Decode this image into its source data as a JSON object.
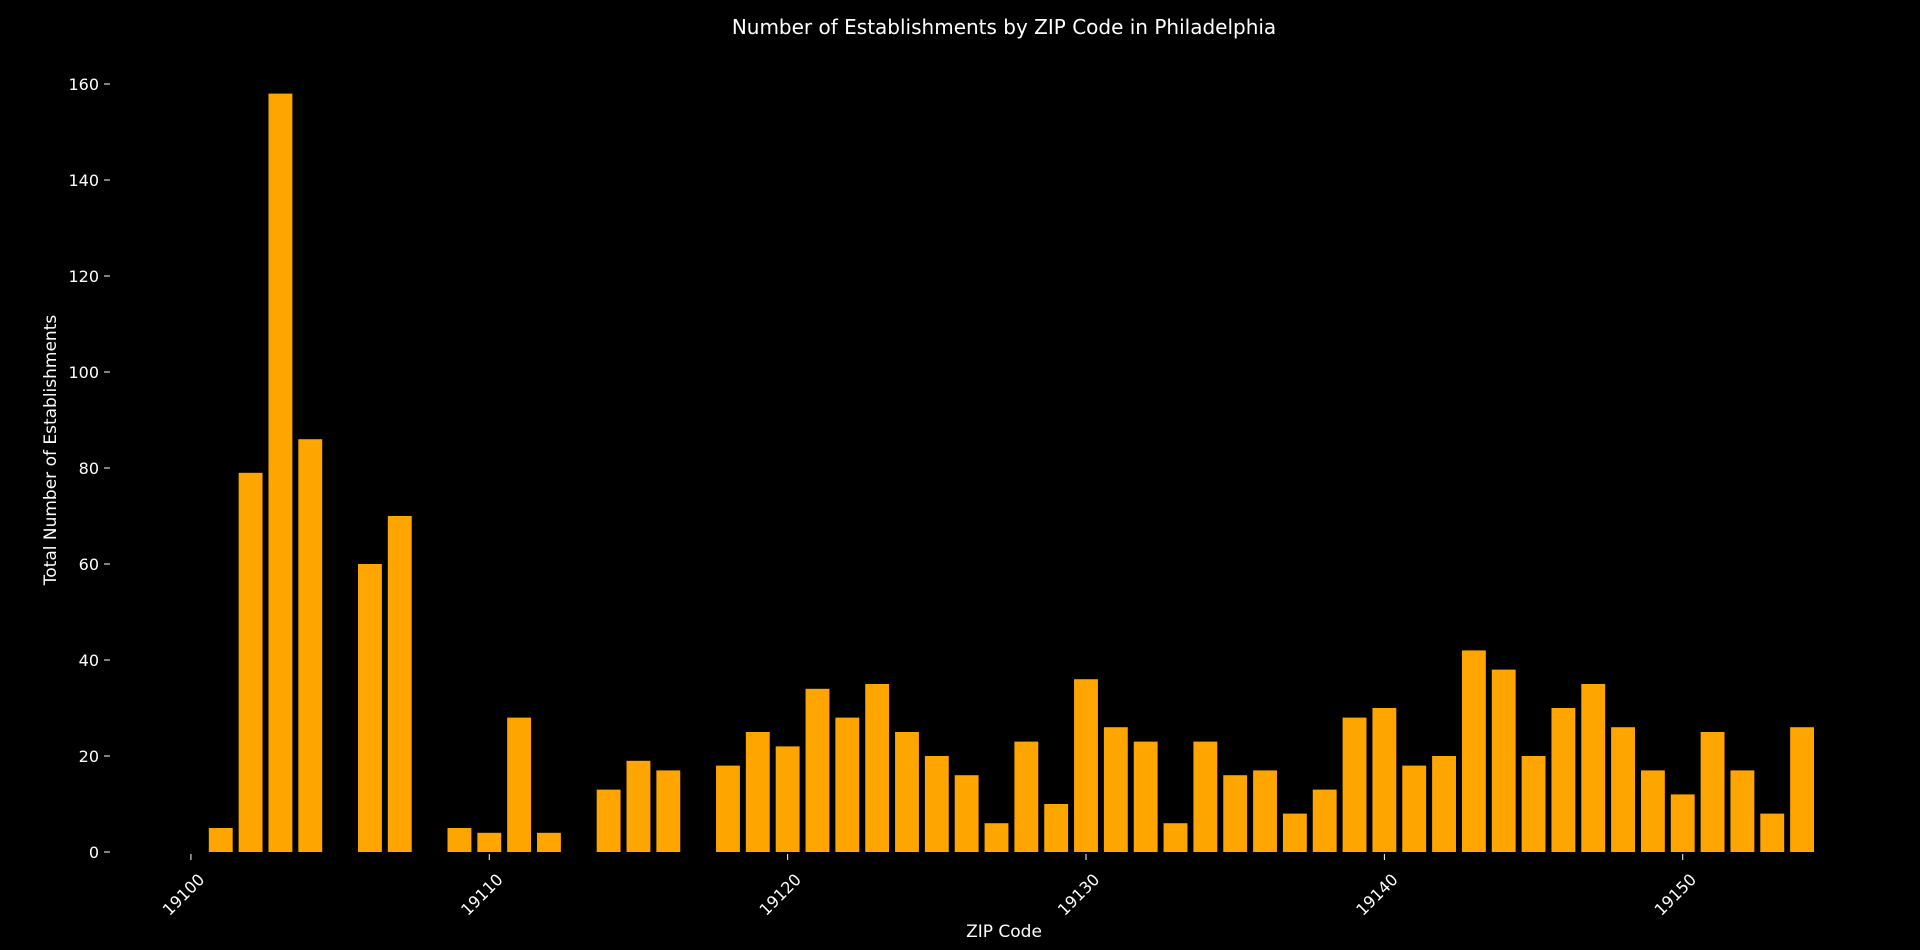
{
  "chart_data": {
    "type": "bar",
    "title": "Number of Establishments by ZIP Code in Philadelphia",
    "xlabel": "ZIP Code",
    "ylabel": "Total Number of Establishments",
    "x": [
      19101,
      19102,
      19103,
      19104,
      19106,
      19107,
      19109,
      19110,
      19111,
      19112,
      19114,
      19115,
      19116,
      19118,
      19119,
      19120,
      19121,
      19122,
      19123,
      19124,
      19125,
      19126,
      19127,
      19128,
      19129,
      19130,
      19131,
      19132,
      19133,
      19134,
      19135,
      19136,
      19137,
      19138,
      19139,
      19140,
      19141,
      19142,
      19143,
      19144,
      19145,
      19146,
      19147,
      19148,
      19149,
      19150,
      19151,
      19152,
      19153,
      19154
    ],
    "values": [
      5,
      79,
      158,
      86,
      60,
      70,
      5,
      4,
      28,
      4,
      13,
      19,
      17,
      18,
      25,
      22,
      34,
      28,
      35,
      25,
      20,
      16,
      6,
      23,
      10,
      36,
      26,
      23,
      6,
      23,
      16,
      17,
      8,
      13,
      28,
      30,
      18,
      20,
      42,
      38,
      20,
      30,
      35,
      26,
      17,
      12,
      25,
      17,
      8,
      26
    ],
    "xlim": [
      19099.5,
      19154.5
    ],
    "ylim": [
      0,
      160
    ],
    "xticks": [
      19100,
      19110,
      19120,
      19130,
      19140,
      19150
    ],
    "yticks": [
      0,
      20,
      40,
      60,
      80,
      100,
      120,
      140,
      160
    ],
    "grid": false,
    "bar_color": "#ffa500",
    "background_color": "#000000"
  }
}
